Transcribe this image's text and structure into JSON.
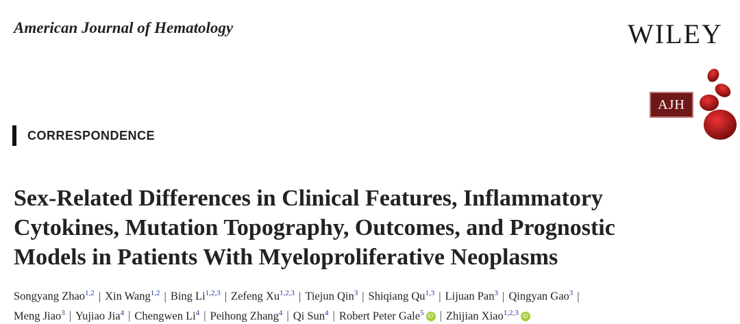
{
  "header": {
    "journal": "American Journal of Hematology",
    "publisher": "WILEY",
    "logo_text": "AJH"
  },
  "section": "CORRESPONDENCE",
  "title_lines": [
    "Sex-Related Differences in Clinical Features, Inflammatory",
    "Cytokines, Mutation Topography, Outcomes, and Prognostic",
    "Models in Patients With Myeloproliferative Neoplasms"
  ],
  "authors": [
    {
      "name": "Songyang Zhao",
      "aff": "1,2"
    },
    {
      "name": "Xin Wang",
      "aff": "1,2"
    },
    {
      "name": "Bing Li",
      "aff": "1,2,3"
    },
    {
      "name": "Zefeng Xu",
      "aff": "1,2,3"
    },
    {
      "name": "Tiejun Qin",
      "aff": "3"
    },
    {
      "name": "Shiqiang Qu",
      "aff": "1,3"
    },
    {
      "name": "Lijuan Pan",
      "aff": "3"
    },
    {
      "name": "Qingyan Gao",
      "aff": "3"
    },
    {
      "name": "Meng Jiao",
      "aff": "3"
    },
    {
      "name": "Yujiao Jia",
      "aff": "4"
    },
    {
      "name": "Chengwen Li",
      "aff": "4"
    },
    {
      "name": "Peihong Zhang",
      "aff": "4"
    },
    {
      "name": "Qi Sun",
      "aff": "4"
    },
    {
      "name": "Robert Peter Gale",
      "aff": "5",
      "orcid": true
    },
    {
      "name": "Zhijian Xiao",
      "aff": "1,2,3",
      "orcid": true
    }
  ],
  "orcid_label": "iD",
  "colors": {
    "orcid": "#a6ce39",
    "logo": "#6e1818",
    "affiliation": "#2233aa"
  }
}
